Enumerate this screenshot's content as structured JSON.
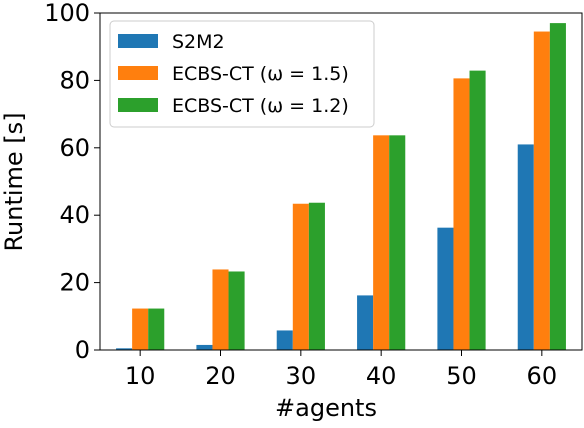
{
  "chart_data": {
    "type": "bar",
    "categories": [
      "10",
      "20",
      "30",
      "40",
      "50",
      "60"
    ],
    "x": [
      10,
      20,
      30,
      40,
      50,
      60
    ],
    "series": [
      {
        "name": "S2M2",
        "color": "#1f77b4",
        "values": [
          0.5,
          1.5,
          5.8,
          16.2,
          36.3,
          61.0
        ]
      },
      {
        "name": "ECBS-CT (ω = 1.5)",
        "color": "#ff7f0e",
        "values": [
          12.3,
          23.9,
          43.4,
          63.7,
          80.6,
          94.5
        ]
      },
      {
        "name": "ECBS-CT (ω = 1.2)",
        "color": "#2ca02c",
        "values": [
          12.3,
          23.3,
          43.7,
          63.7,
          82.9,
          97.0
        ]
      }
    ],
    "xlabel": "#agents",
    "ylabel": "Runtime [s]",
    "ylim": [
      0,
      100
    ],
    "yticks": [
      0,
      20,
      40,
      60,
      80,
      100
    ],
    "grid": false,
    "legend": "top-left"
  }
}
